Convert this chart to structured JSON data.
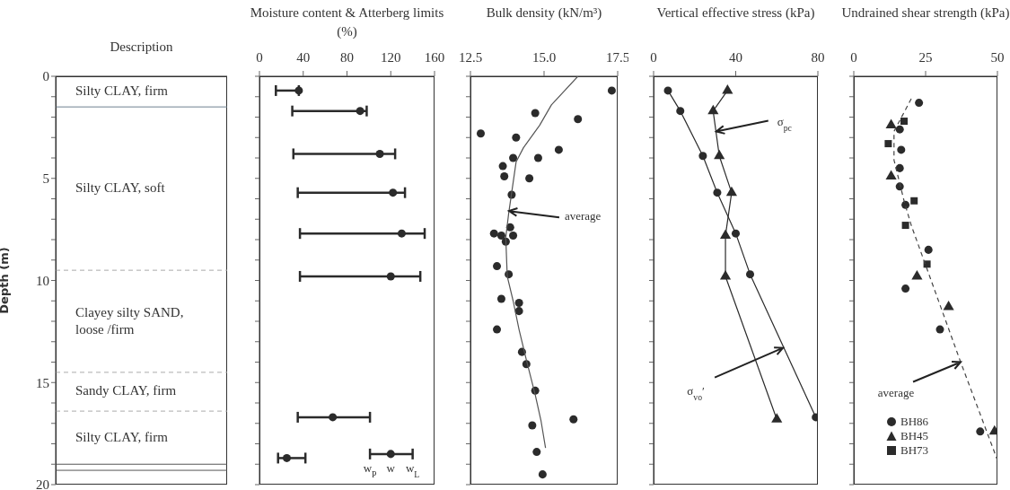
{
  "chart_data": [
    {
      "type": "scatter",
      "title": "Description",
      "categories": [
        null
      ],
      "ylabel": "Depth (m)",
      "ylim": [
        20,
        0
      ],
      "tick_labels": "y",
      "yticks": [
        0,
        {
          "value": 1,
          "label": null
        },
        {
          "value": 2,
          "label": null
        },
        {
          "value": 3,
          "label": null
        },
        {
          "value": 4,
          "label": null
        },
        5,
        {
          "value": 6,
          "label": null
        },
        {
          "value": 7,
          "label": null
        },
        {
          "value": 8,
          "label": null
        },
        {
          "value": 9,
          "label": null
        },
        10,
        {
          "value": 11,
          "label": null
        },
        {
          "value": 12,
          "label": null
        },
        {
          "value": 13,
          "label": null
        },
        {
          "value": 14,
          "label": null
        },
        15,
        {
          "value": 16,
          "label": null
        },
        {
          "value": 17,
          "label": null
        },
        {
          "value": 18,
          "label": null
        },
        {
          "value": 19,
          "label": null
        },
        20
      ],
      "annotations": [
        "Silty CLAY, firm",
        "Silty CLAY, soft",
        "Clayey silty SAND, loose /firm",
        "Sandy CLAY, firm",
        "Silty CLAY, firm"
      ],
      "ref_lines": [
        {
          "axis": "y",
          "value": 1.5,
          "line_style": "solid",
          "color": "#6f8090"
        },
        {
          "axis": "y",
          "value": 9.5,
          "line_style": "dashed",
          "color": "#aaaaaa"
        },
        {
          "axis": "y",
          "value": 14.5,
          "line_style": "dashed",
          "color": "#aaaaaa"
        },
        {
          "axis": "y",
          "value": 16.4,
          "line_style": "dashed",
          "color": "#aaaaaa"
        },
        {
          "axis": "y",
          "value": 19.0,
          "line_style": "solid",
          "color": "#555555"
        },
        {
          "axis": "y",
          "value": 19.3,
          "line_style": "solid",
          "color": "#555555"
        }
      ]
    },
    {
      "type": "scatter",
      "title": "Moisture content & Atterberg limits (%)",
      "xlim": [
        0,
        160
      ],
      "xticks": [
        0,
        40,
        80,
        120,
        160
      ],
      "ylim": [
        20,
        0
      ],
      "tick_labels": "x",
      "marker": "circle",
      "yticks": [
        0,
        {
          "value": 1,
          "label": null
        },
        {
          "value": 2,
          "label": null
        },
        {
          "value": 3,
          "label": null
        },
        {
          "value": 4,
          "label": null
        },
        5,
        {
          "value": 6,
          "label": null
        },
        {
          "value": 7,
          "label": null
        },
        {
          "value": 8,
          "label": null
        },
        {
          "value": 9,
          "label": null
        },
        10,
        {
          "value": 11,
          "label": null
        },
        {
          "value": 12,
          "label": null
        },
        {
          "value": 13,
          "label": null
        },
        {
          "value": 14,
          "label": null
        },
        15,
        {
          "value": 16,
          "label": null
        },
        {
          "value": 17,
          "label": null
        },
        {
          "value": 18,
          "label": null
        },
        {
          "value": 19,
          "label": null
        },
        20
      ],
      "series": [
        {
          "color": "#2b2b2b",
          "x": [
            36,
            92,
            110,
            122,
            130,
            120,
            67,
            25,
            120
          ],
          "values": [
            0.7,
            1.7,
            3.8,
            5.7,
            7.7,
            9.8,
            16.7,
            18.7,
            18.5
          ],
          "xerrors": [
            [
              15,
              36
            ],
            [
              30,
              98
            ],
            [
              31,
              124
            ],
            [
              35,
              133
            ],
            [
              37,
              151
            ],
            [
              37,
              147
            ],
            [
              35,
              101
            ],
            [
              17,
              42
            ],
            [
              101,
              140
            ]
          ]
        }
      ],
      "annotations": [
        {
          "text": "w$_{P}$",
          "x": 101,
          "y": 18.5
        },
        {
          "text": "w",
          "x": 120,
          "y": 18.5
        },
        {
          "text": "w$_{L}$",
          "x": 140,
          "y": 18.5
        }
      ]
    },
    {
      "type": "scatter",
      "title": "Bulk density (kN/m³)",
      "xlim": [
        12.5,
        17.5
      ],
      "xticks": [
        {
          "value": 12.5,
          "label": "12.5"
        },
        {
          "value": 15,
          "label": "15.0"
        },
        {
          "value": 17.5,
          "label": "17.5"
        }
      ],
      "ylim": [
        20,
        0
      ],
      "tick_labels": "x",
      "marker": "circle",
      "yticks": [
        0,
        {
          "value": 1,
          "label": null
        },
        {
          "value": 2,
          "label": null
        },
        {
          "value": 3,
          "label": null
        },
        {
          "value": 4,
          "label": null
        },
        5,
        {
          "value": 6,
          "label": null
        },
        {
          "value": 7,
          "label": null
        },
        {
          "value": 8,
          "label": null
        },
        {
          "value": 9,
          "label": null
        },
        10,
        {
          "value": 11,
          "label": null
        },
        {
          "value": 12,
          "label": null
        },
        {
          "value": 13,
          "label": null
        },
        {
          "value": 14,
          "label": null
        },
        15,
        {
          "value": 16,
          "label": null
        },
        {
          "value": 17,
          "label": null
        },
        {
          "value": 18,
          "label": null
        },
        {
          "value": 19,
          "label": null
        },
        20
      ],
      "series": [
        {
          "color": "#2b2b2b",
          "x": [
            17.3,
            14.7,
            16.15,
            12.85,
            14.05,
            15.5,
            13.95,
            14.8,
            13.6,
            13.65,
            14.5,
            13.9,
            13.85,
            13.3,
            13.55,
            13.95,
            13.7,
            13.4,
            13.8,
            13.55,
            14.15,
            14.15,
            13.4,
            14.25,
            14.4,
            14.7,
            16.0,
            14.6,
            14.75,
            14.95
          ],
          "values": [
            0.7,
            1.8,
            2.1,
            2.8,
            3.0,
            3.6,
            4.0,
            4.0,
            4.4,
            4.9,
            5.0,
            5.8,
            7.4,
            7.7,
            7.8,
            7.8,
            8.1,
            9.3,
            9.7,
            10.9,
            11.1,
            11.5,
            12.4,
            13.5,
            14.1,
            15.4,
            16.8,
            17.1,
            18.4,
            19.5
          ]
        },
        {
          "type": "line",
          "marker": "none",
          "color": "#555555",
          "x": [
            16.15,
            15.25,
            14.85,
            14.3,
            14.05,
            13.95,
            13.8,
            13.7,
            13.75,
            13.95,
            14.15,
            14.4,
            14.7,
            14.9,
            15.05
          ],
          "values": [
            0,
            1.4,
            2.4,
            3.5,
            4.2,
            5.2,
            6.7,
            7.9,
            9.8,
            11.0,
            12.4,
            13.9,
            15.6,
            16.9,
            18.2
          ]
        }
      ],
      "annotations": [
        {
          "text": "average",
          "x": 13.81,
          "y": 6.6
        }
      ]
    },
    {
      "type": "line",
      "title": "Vertical effective stress (kPa)",
      "xlim": [
        0,
        80
      ],
      "xticks": [
        0,
        40,
        80
      ],
      "ylim": [
        20,
        0
      ],
      "tick_labels": "x",
      "yticks": [
        0,
        {
          "value": 1,
          "label": null
        },
        {
          "value": 2,
          "label": null
        },
        {
          "value": 3,
          "label": null
        },
        {
          "value": 4,
          "label": null
        },
        5,
        {
          "value": 6,
          "label": null
        },
        {
          "value": 7,
          "label": null
        },
        {
          "value": 8,
          "label": null
        },
        {
          "value": 9,
          "label": null
        },
        10,
        {
          "value": 11,
          "label": null
        },
        {
          "value": 12,
          "label": null
        },
        {
          "value": 13,
          "label": null
        },
        {
          "value": 14,
          "label": null
        },
        15,
        {
          "value": 16,
          "label": null
        },
        {
          "value": 17,
          "label": null
        },
        {
          "value": 18,
          "label": null
        },
        {
          "value": 19,
          "label": null
        },
        20
      ],
      "series": [
        {
          "color": "#2b2b2b",
          "marker": "circle",
          "x": [
            7,
            13,
            24,
            31,
            40,
            47,
            79
          ],
          "values": [
            0.7,
            1.7,
            3.9,
            5.7,
            7.7,
            9.7,
            16.7
          ]
        },
        {
          "color": "#2b2b2b",
          "marker": "triangle",
          "x": [
            36,
            29,
            32,
            38,
            35,
            35,
            60
          ],
          "values": [
            0.7,
            1.7,
            3.9,
            5.7,
            7.8,
            9.8,
            16.8
          ]
        }
      ],
      "annotations": [
        {
          "text": "σ$_{pc}$",
          "x": 30.5,
          "y": 2.7
        },
        {
          "text": "σ$_{vo}$′",
          "x": 63,
          "y": 13.3
        }
      ]
    },
    {
      "type": "scatter",
      "title": "Undrained shear strength (kPa)",
      "xlim": [
        0,
        50
      ],
      "xticks": [
        0,
        25,
        50
      ],
      "ylim": [
        20,
        0
      ],
      "tick_labels": "x",
      "legend": "bottom",
      "yticks": [
        0,
        {
          "value": 1,
          "label": null
        },
        {
          "value": 2,
          "label": null
        },
        {
          "value": 3,
          "label": null
        },
        {
          "value": 4,
          "label": null
        },
        5,
        {
          "value": 6,
          "label": null
        },
        {
          "value": 7,
          "label": null
        },
        {
          "value": 8,
          "label": null
        },
        {
          "value": 9,
          "label": null
        },
        10,
        {
          "value": 11,
          "label": null
        },
        {
          "value": 12,
          "label": null
        },
        {
          "value": 13,
          "label": null
        },
        {
          "value": 14,
          "label": null
        },
        15,
        {
          "value": 16,
          "label": null
        },
        {
          "value": 17,
          "label": null
        },
        {
          "value": 18,
          "label": null
        },
        {
          "value": 19,
          "label": null
        },
        20
      ],
      "series": [
        {
          "name": "BH86",
          "color": "#2b2b2b",
          "marker": "circle",
          "x": [
            22.7,
            16,
            16.5,
            16,
            16,
            18,
            26,
            18,
            30,
            44
          ],
          "values": [
            1.3,
            2.6,
            3.6,
            4.5,
            5.4,
            6.3,
            8.5,
            10.4,
            12.4,
            17.4
          ]
        },
        {
          "name": "BH45",
          "color": "#2b2b2b",
          "marker": "triangle",
          "x": [
            13,
            13,
            22,
            33,
            49
          ],
          "values": [
            2.4,
            4.9,
            9.8,
            11.3,
            17.4
          ]
        },
        {
          "name": "BH73",
          "color": "#2b2b2b",
          "marker": "square",
          "x": [
            17.5,
            12,
            21,
            18,
            25.5
          ],
          "values": [
            2.2,
            3.3,
            6.1,
            7.3,
            9.2
          ]
        },
        {
          "type": "line",
          "marker": "none",
          "line_style": "dashed",
          "color": "#444444",
          "x": [
            20,
            14,
            14,
            17.5,
            20,
            37.2,
            50
          ],
          "values": [
            1.1,
            2.7,
            4.1,
            6.1,
            7.3,
            14,
            18.8
          ]
        }
      ],
      "annotations": [
        {
          "text": "average",
          "x": 37.2,
          "y": 14
        }
      ]
    }
  ]
}
